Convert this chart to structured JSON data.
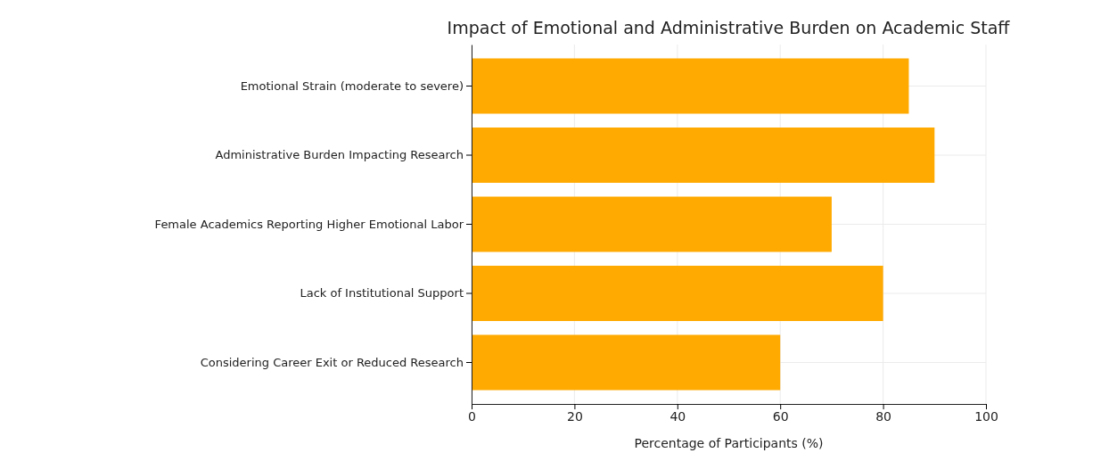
{
  "chart_data": {
    "type": "bar",
    "orientation": "horizontal",
    "title": "Impact of Emotional and Administrative Burden on Academic Staff",
    "xlabel": "Percentage of Participants (%)",
    "categories": [
      "Emotional Strain (moderate to severe)",
      "Administrative Burden Impacting Research",
      "Female Academics Reporting Higher Emotional Labor",
      "Lack of Institutional Support",
      "Considering Career Exit or Reduced Research"
    ],
    "values": [
      85,
      90,
      70,
      80,
      60
    ],
    "color": "#ffaa00",
    "xlim": [
      0,
      100
    ],
    "xticks": [
      0,
      20,
      40,
      60,
      80,
      100
    ],
    "grid": true
  }
}
